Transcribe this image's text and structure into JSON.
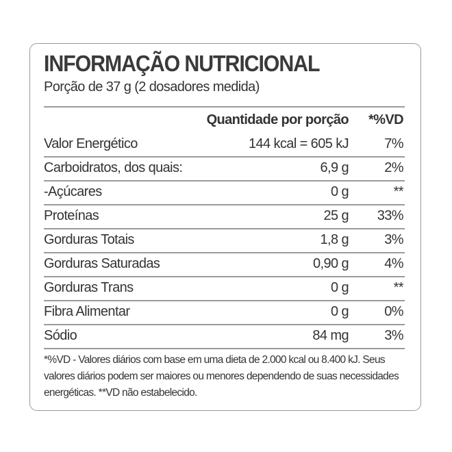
{
  "title": "INFORMAÇÃO NUTRICIONAL",
  "portion": "Porção de 37 g (2 dosadores medida)",
  "header": {
    "quantity": "Quantidade por porção",
    "vd": "*%VD"
  },
  "rows": [
    {
      "label": "Valor Energético",
      "quantity": "144 kcal = 605 kJ",
      "vd": "7%"
    },
    {
      "label": "Carboidratos, dos quais:",
      "quantity": "6,9 g",
      "vd": "2%"
    },
    {
      "label": "-Açúcares",
      "quantity": "0 g",
      "vd": "**"
    },
    {
      "label": "Proteínas",
      "quantity": "25 g",
      "vd": "33%"
    },
    {
      "label": "Gorduras Totais",
      "quantity": "1,8 g",
      "vd": "3%"
    },
    {
      "label": "Gorduras Saturadas",
      "quantity": "0,90 g",
      "vd": "4%"
    },
    {
      "label": "Gorduras Trans",
      "quantity": "0 g",
      "vd": "**"
    },
    {
      "label": "Fibra Alimentar",
      "quantity": "0 g",
      "vd": "0%"
    },
    {
      "label": "Sódio",
      "quantity": "84 mg",
      "vd": "3%"
    }
  ],
  "footnote": "*%VD - Valores diários com base em uma dieta de 2.000 kcal ou 8.400 kJ. Seus valores diários podem ser maiores ou menores dependendo de suas necessidades energéticas. **VD não estabelecido."
}
